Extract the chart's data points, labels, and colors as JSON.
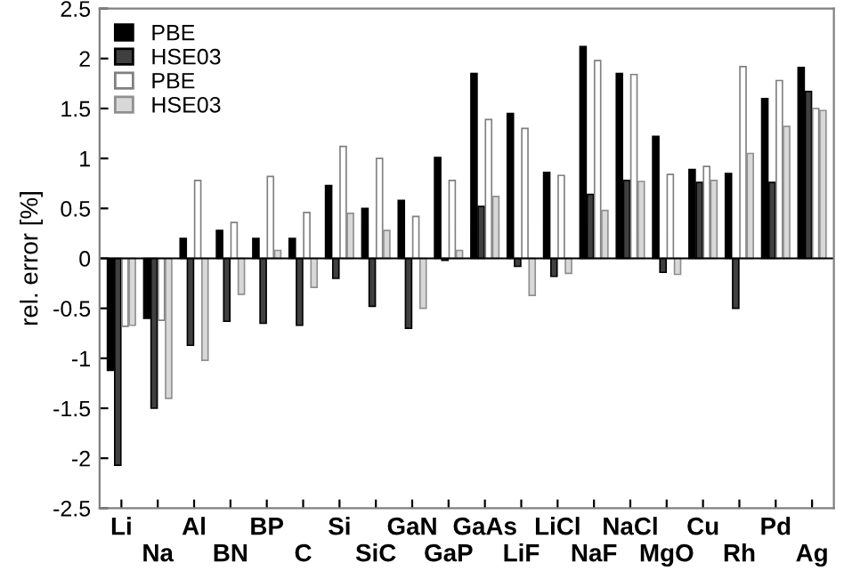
{
  "chart_data": {
    "type": "bar",
    "ylabel": "rel. error [%]",
    "categories": [
      "Li",
      "Na",
      "Al",
      "BN",
      "BP",
      "C",
      "Si",
      "SiC",
      "GaN",
      "GaP",
      "GaAs",
      "LiF",
      "LiCl",
      "NaF",
      "NaCl",
      "MgO",
      "Cu",
      "Rh",
      "Pd",
      "Ag"
    ],
    "series": [
      {
        "name": "PBE",
        "color": "#000000",
        "values": [
          -1.12,
          -0.6,
          0.2,
          0.28,
          0.2,
          0.2,
          0.73,
          0.5,
          0.58,
          1.01,
          1.85,
          1.45,
          0.86,
          2.12,
          1.85,
          1.22,
          0.89,
          0.85,
          1.6,
          1.91
        ]
      },
      {
        "name": "HSE03",
        "color": "#404040",
        "values": [
          -2.07,
          -1.5,
          -0.87,
          -0.63,
          -0.65,
          -0.67,
          -0.2,
          -0.48,
          -0.7,
          -0.02,
          0.52,
          -0.08,
          -0.18,
          0.64,
          0.78,
          -0.14,
          0.76,
          -0.5,
          0.76,
          1.67
        ]
      },
      {
        "name": "PBE",
        "color": "#ffffff",
        "values": [
          -0.68,
          -0.62,
          0.78,
          0.36,
          0.82,
          0.46,
          1.12,
          1.0,
          0.42,
          0.78,
          1.39,
          1.3,
          0.83,
          1.98,
          1.84,
          0.84,
          0.92,
          1.92,
          1.78,
          1.5
        ]
      },
      {
        "name": "HSE03",
        "color": "#d8d8d8",
        "values": [
          -0.67,
          -1.4,
          -1.02,
          -0.36,
          0.08,
          -0.29,
          0.45,
          0.28,
          -0.5,
          0.08,
          0.62,
          -0.37,
          -0.15,
          0.48,
          0.77,
          -0.16,
          0.78,
          1.05,
          1.32,
          1.48
        ]
      }
    ],
    "ylim": [
      -2.5,
      2.5
    ],
    "yticks": [
      -2.5,
      -2,
      -1.5,
      -1,
      -0.5,
      0,
      0.5,
      1,
      1.5,
      2,
      2.5
    ],
    "legend": "top left",
    "ref_lines": [
      {
        "axis": "y",
        "value": 0,
        "color": "#000000"
      }
    ]
  }
}
